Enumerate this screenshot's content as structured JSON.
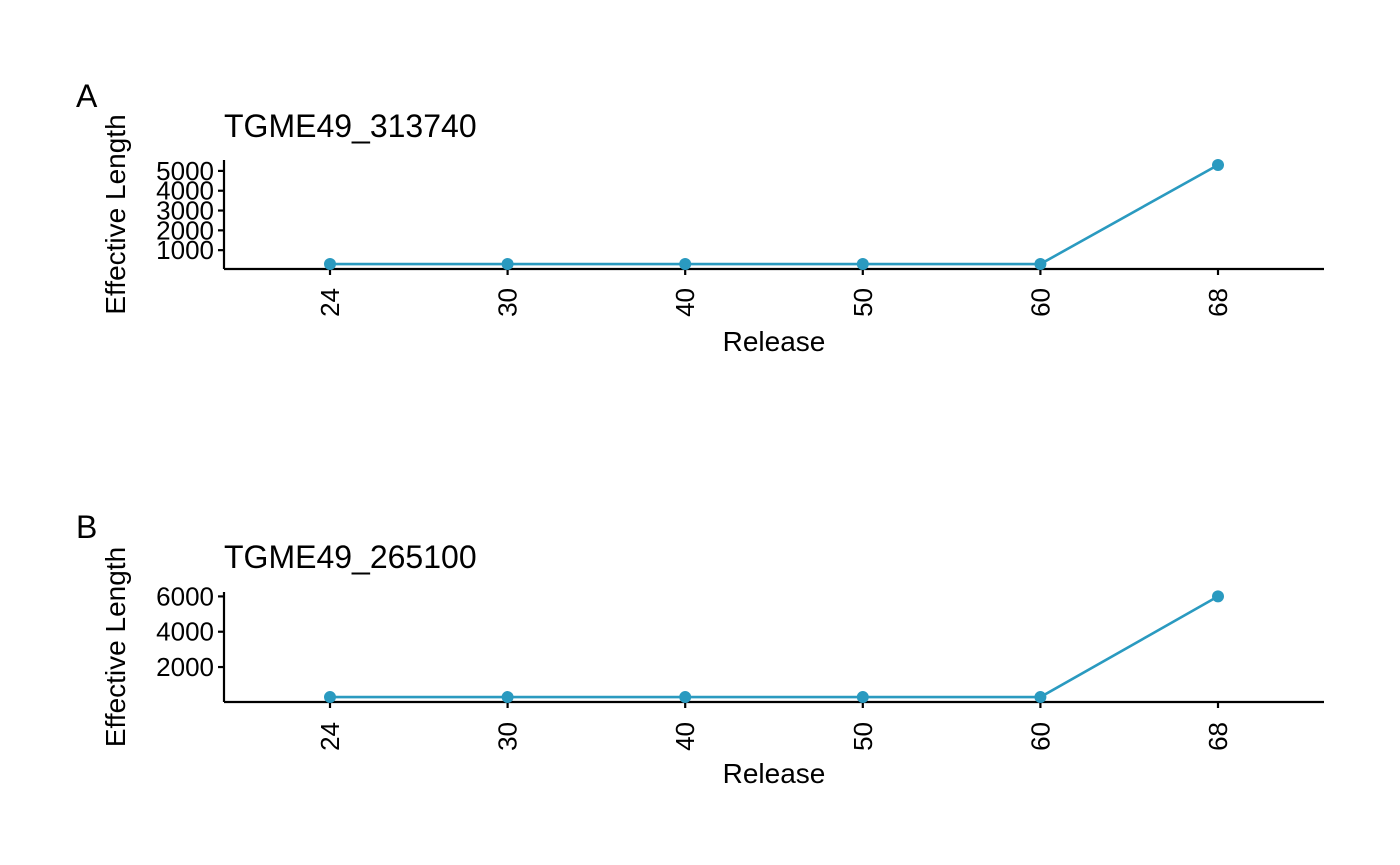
{
  "figure": {
    "background": "#ffffff",
    "series_color": "#2a9ac0"
  },
  "chart_data": [
    {
      "type": "line",
      "panel_letter": "A",
      "title": "TGME49_313740",
      "xlabel": "Release",
      "ylabel": "Effective Length",
      "categories": [
        "24",
        "30",
        "40",
        "50",
        "60",
        "68"
      ],
      "series": [
        {
          "values": [
            300,
            300,
            300,
            300,
            300,
            5300
          ]
        }
      ],
      "yticks": [
        1000,
        2000,
        3000,
        4000,
        5000
      ],
      "ylim": [
        50,
        5550
      ],
      "x_label_rotation": -90,
      "markers": true,
      "grid": false,
      "legend": "none"
    },
    {
      "type": "line",
      "panel_letter": "B",
      "title": "TGME49_265100",
      "xlabel": "Release",
      "ylabel": "Effective Length",
      "categories": [
        "24",
        "30",
        "40",
        "50",
        "60",
        "68"
      ],
      "series": [
        {
          "values": [
            300,
            300,
            300,
            300,
            300,
            6000
          ]
        }
      ],
      "yticks": [
        2000,
        4000,
        6000
      ],
      "ylim": [
        20,
        6250
      ],
      "x_label_rotation": -90,
      "markers": true,
      "grid": false,
      "legend": "none"
    }
  ]
}
